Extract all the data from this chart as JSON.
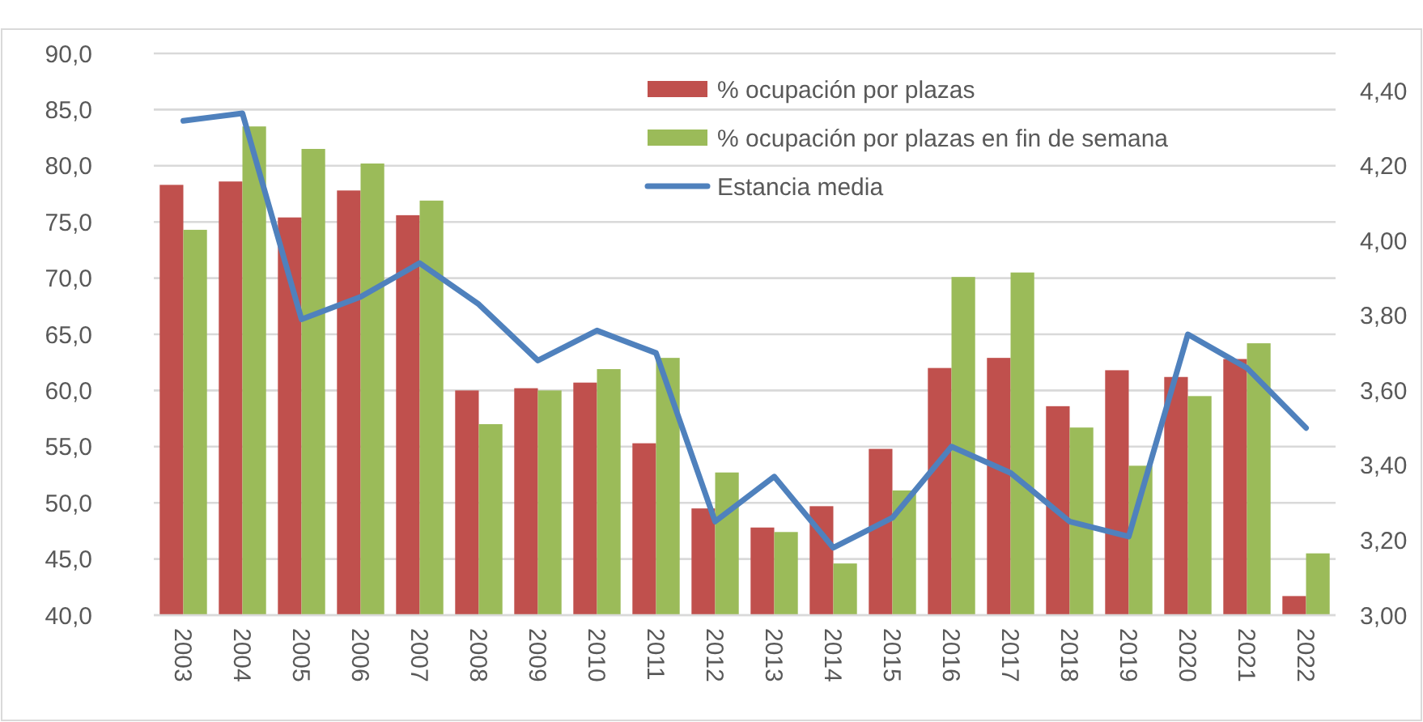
{
  "chart_data": {
    "type": "bar",
    "categories": [
      "2003",
      "2004",
      "2005",
      "2006",
      "2007",
      "2008",
      "2009",
      "2010",
      "2011",
      "2012",
      "2013",
      "2014",
      "2015",
      "2016",
      "2017",
      "2018",
      "2019",
      "2020",
      "2021",
      "2022"
    ],
    "series": [
      {
        "name": "% ocupación por plazas",
        "color": "#c0504d",
        "values": [
          78.3,
          78.6,
          75.4,
          77.8,
          75.6,
          60.0,
          60.2,
          60.7,
          55.3,
          49.5,
          47.8,
          49.7,
          54.8,
          62.0,
          62.9,
          58.6,
          61.8,
          61.2,
          62.8,
          41.7
        ]
      },
      {
        "name": "% ocupación por plazas en fin de semana",
        "color": "#9bbb59",
        "values": [
          74.3,
          83.5,
          81.5,
          80.2,
          76.9,
          57.0,
          60.0,
          61.9,
          62.9,
          52.7,
          47.4,
          44.6,
          51.1,
          70.1,
          70.5,
          56.7,
          53.3,
          59.5,
          64.2,
          45.5
        ]
      },
      {
        "name": "Estancia media",
        "type": "line",
        "axis": "y2",
        "color": "#4f81bd",
        "values": [
          4.32,
          4.34,
          3.79,
          3.85,
          3.94,
          3.83,
          3.68,
          3.76,
          3.7,
          3.25,
          3.37,
          3.18,
          3.26,
          3.45,
          3.38,
          3.25,
          3.21,
          3.75,
          3.66,
          3.5
        ]
      }
    ],
    "ylim": [
      40,
      90
    ],
    "yticks": [
      {
        "value": 40,
        "label": "40,0"
      },
      {
        "value": 45,
        "label": "45,0"
      },
      {
        "value": 50,
        "label": "50,0"
      },
      {
        "value": 55,
        "label": "55,0"
      },
      {
        "value": 60,
        "label": "60,0"
      },
      {
        "value": 65,
        "label": "65,0"
      },
      {
        "value": 70,
        "label": "70,0"
      },
      {
        "value": 75,
        "label": "75,0"
      },
      {
        "value": 80,
        "label": "80,0"
      },
      {
        "value": 85,
        "label": "85,0"
      },
      {
        "value": 90,
        "label": "90,0"
      }
    ],
    "y2lim": [
      3,
      4.5
    ],
    "y2ticks": [
      {
        "value": 3,
        "label": "3,00"
      },
      {
        "value": 3.2,
        "label": "3,20"
      },
      {
        "value": 3.4,
        "label": "3,40"
      },
      {
        "value": 3.6,
        "label": "3,60"
      },
      {
        "value": 3.8,
        "label": "3,80"
      },
      {
        "value": 4,
        "label": "4,00"
      },
      {
        "value": 4.2,
        "label": "4,20"
      },
      {
        "value": 4.4,
        "label": "4,40"
      }
    ],
    "grid": "y",
    "legend": "top right",
    "marker": "none",
    "line_style": "solid"
  }
}
